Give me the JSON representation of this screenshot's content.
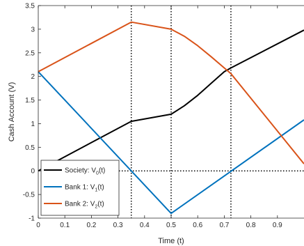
{
  "chart_data": {
    "type": "line",
    "xlabel": "Time (t)",
    "ylabel": "Cash Account (V)",
    "xlim": [
      0,
      1
    ],
    "ylim": [
      -1,
      3.5
    ],
    "xticks": [
      0,
      0.1,
      0.2,
      0.3,
      0.4,
      0.5,
      0.6,
      0.7,
      0.8,
      0.9
    ],
    "xtick_labels": [
      "0",
      "0.1",
      "0.2",
      "0.3",
      "0.4",
      "0.5",
      "0.6",
      "0.7",
      "0.8",
      "0.9"
    ],
    "yticks": [
      -1,
      -0.5,
      0,
      0.5,
      1,
      1.5,
      2,
      2.5,
      3,
      3.5
    ],
    "ytick_labels": [
      "-1",
      "-0.5",
      "0",
      "0.5",
      "1",
      "1.5",
      "2",
      "2.5",
      "3",
      "3.5"
    ],
    "vertical_lines": [
      0.35,
      0.5,
      0.725
    ],
    "horizontal_lines": [
      0
    ],
    "grid": false,
    "legend": {
      "placement": "bottom-left",
      "entries": [
        {
          "base": "Society: V",
          "sub": "0",
          "suffix": "(t)"
        },
        {
          "base": "Bank 1: V",
          "sub": "1",
          "suffix": "(t)"
        },
        {
          "base": "Bank 2: V",
          "sub": "2",
          "suffix": "(t)"
        }
      ]
    },
    "series": [
      {
        "color": "#000000",
        "x": [
          0,
          0.35,
          0.5,
          0.55,
          0.6,
          0.65,
          0.7,
          0.725,
          1.0
        ],
        "y": [
          0,
          1.05,
          1.2,
          1.38,
          1.6,
          1.85,
          2.1,
          2.18,
          2.98
        ]
      },
      {
        "color": "#0072BD",
        "x": [
          0,
          0.5,
          1.0
        ],
        "y": [
          2.1,
          -0.9,
          1.08
        ]
      },
      {
        "color": "#D95319",
        "x": [
          0,
          0.35,
          0.5,
          0.55,
          0.6,
          0.65,
          0.7,
          0.725,
          1.0
        ],
        "y": [
          2.1,
          3.15,
          3.0,
          2.85,
          2.65,
          2.42,
          2.18,
          2.06,
          0.15
        ]
      }
    ]
  }
}
